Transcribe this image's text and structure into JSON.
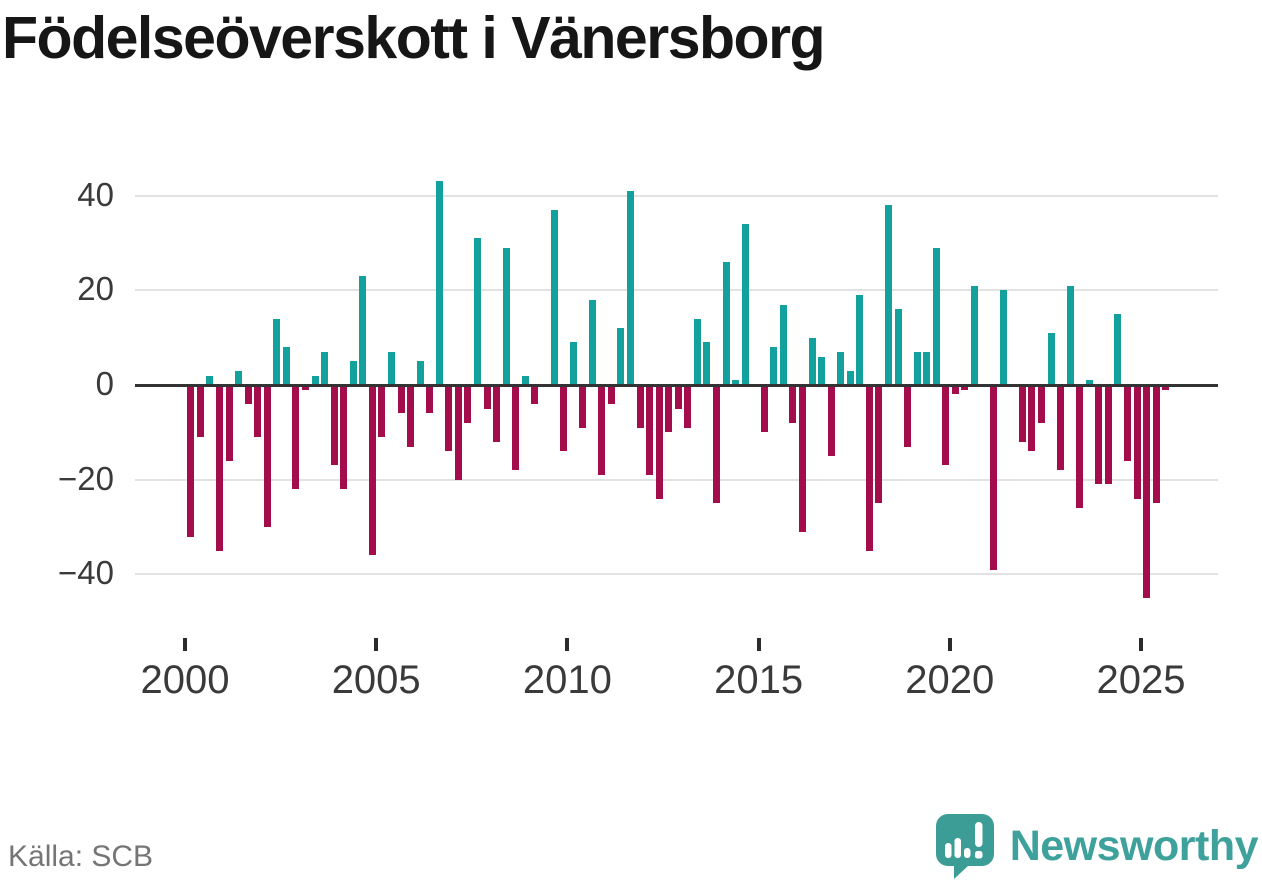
{
  "title": "Födelseöverskott i Vänersborg",
  "source": "Källa: SCB",
  "branding": {
    "name": "Newsworthy"
  },
  "colors": {
    "positive_bar": "#12a19d",
    "negative_bar": "#a40d4b",
    "axis_line": "#333333",
    "gridline": "#e2e2e2",
    "tick_label": "#3a3a3a",
    "source_text": "#757575",
    "brand_teal": "#3ea19b",
    "brand_icon_teal": "#3b9d95",
    "title_text": "#161616"
  },
  "chart_data": {
    "type": "bar",
    "title": "Födelseöverskott i Vänersborg",
    "frequency": "quarterly",
    "xlabel": "",
    "ylabel": "",
    "ylim": [
      -50,
      45
    ],
    "grid": true,
    "legend": false,
    "yticks": [
      40,
      20,
      0,
      -20,
      -40
    ],
    "ytick_labels": [
      "40",
      "20",
      "0",
      "−20",
      "−40"
    ],
    "xticks": [
      2000,
      2005,
      2010,
      2015,
      2020,
      2025
    ],
    "xtick_labels": [
      "2000",
      "2005",
      "2010",
      "2015",
      "2020",
      "2025"
    ],
    "values_by_year": [
      {
        "year": 2000,
        "quarters": [
          -32,
          -11,
          2,
          -35
        ]
      },
      {
        "year": 2001,
        "quarters": [
          -16,
          3,
          -4,
          -11
        ]
      },
      {
        "year": 2002,
        "quarters": [
          -30,
          14,
          8,
          -22
        ]
      },
      {
        "year": 2003,
        "quarters": [
          -1,
          2,
          7,
          -17
        ]
      },
      {
        "year": 2004,
        "quarters": [
          -22,
          5,
          23,
          -36
        ]
      },
      {
        "year": 2005,
        "quarters": [
          -11,
          7,
          -6,
          -13
        ]
      },
      {
        "year": 2006,
        "quarters": [
          5,
          -6,
          43,
          -14
        ]
      },
      {
        "year": 2007,
        "quarters": [
          -20,
          -8,
          31,
          -5
        ]
      },
      {
        "year": 2008,
        "quarters": [
          -12,
          29,
          -18,
          2
        ]
      },
      {
        "year": 2009,
        "quarters": [
          -4,
          0,
          37,
          -14
        ]
      },
      {
        "year": 2010,
        "quarters": [
          9,
          -9,
          18,
          -19
        ]
      },
      {
        "year": 2011,
        "quarters": [
          -4,
          12,
          41,
          -9
        ]
      },
      {
        "year": 2012,
        "quarters": [
          -19,
          -24,
          -10,
          -5
        ]
      },
      {
        "year": 2013,
        "quarters": [
          -9,
          14,
          9,
          -25
        ]
      },
      {
        "year": 2014,
        "quarters": [
          26,
          1,
          34,
          0
        ]
      },
      {
        "year": 2015,
        "quarters": [
          -10,
          8,
          17,
          -8
        ]
      },
      {
        "year": 2016,
        "quarters": [
          -31,
          10,
          6,
          -15
        ]
      },
      {
        "year": 2017,
        "quarters": [
          7,
          3,
          19,
          -35
        ]
      },
      {
        "year": 2018,
        "quarters": [
          -25,
          38,
          16,
          -13
        ]
      },
      {
        "year": 2019,
        "quarters": [
          7,
          7,
          29,
          -17
        ]
      },
      {
        "year": 2020,
        "quarters": [
          -2,
          -1,
          21,
          0
        ]
      },
      {
        "year": 2021,
        "quarters": [
          -39,
          20,
          0,
          -12
        ]
      },
      {
        "year": 2022,
        "quarters": [
          -14,
          -8,
          11,
          -18
        ]
      },
      {
        "year": 2023,
        "quarters": [
          21,
          -26,
          1,
          -21
        ]
      },
      {
        "year": 2024,
        "quarters": [
          -21,
          15,
          -16,
          -24
        ]
      },
      {
        "year": 2025,
        "quarters": [
          -45,
          -25,
          -1
        ]
      }
    ]
  }
}
